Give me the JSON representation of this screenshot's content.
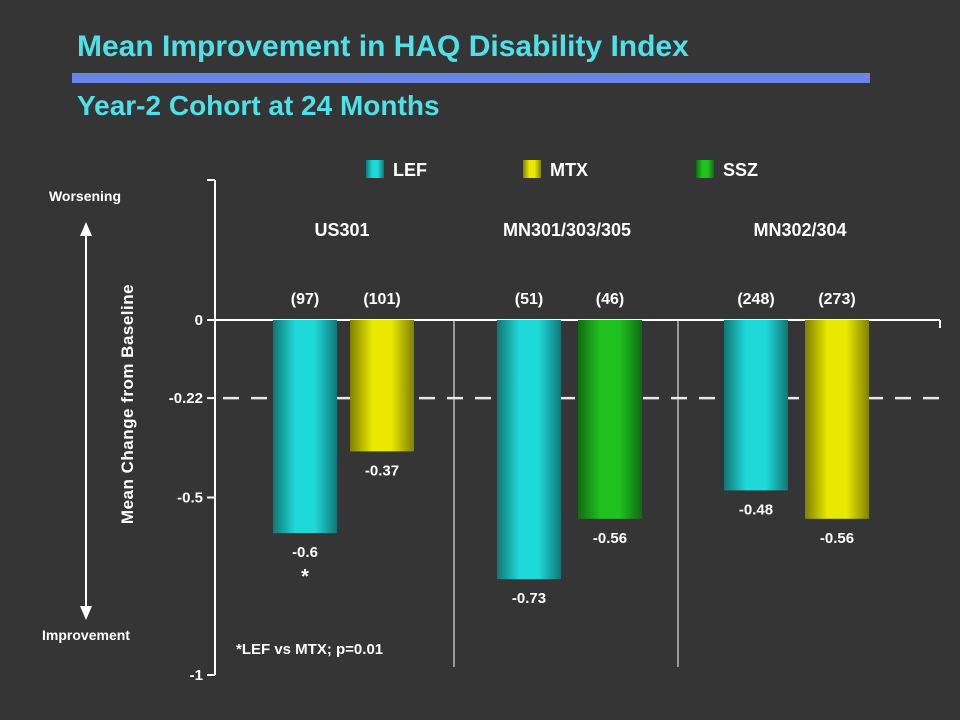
{
  "header": {
    "title": "Mean Improvement in HAQ Disability Index",
    "subtitle": "Year-2 Cohort at 24 Months"
  },
  "colors": {
    "background": "#353535",
    "title": "#4fe0e8",
    "rule": "#6a85e6",
    "LEF": "#1fd9d9",
    "MTX": "#e8e800",
    "SSZ": "#1fc21f"
  },
  "chart_data": {
    "type": "bar",
    "title": "Mean Improvement in HAQ Disability Index",
    "subtitle": "Year-2 Cohort at 24 Months",
    "ylabel": "Mean Change from Baseline",
    "ylim": [
      -1,
      0.4
    ],
    "yticks": [
      0,
      -0.22,
      -0.5,
      -1
    ],
    "ytick_labels": [
      "0",
      "-0.22",
      "-0.5",
      "-1"
    ],
    "reference_line": -0.22,
    "legend": [
      "LEF",
      "MTX",
      "SSZ"
    ],
    "legend_position": "top",
    "direction_labels": {
      "top": "Worsening",
      "bottom": "Improvement"
    },
    "groups": [
      {
        "name": "US301",
        "bars": [
          {
            "drug": "LEF",
            "n": "(97)",
            "value": -0.6,
            "label": "-0.6",
            "marker": "*"
          },
          {
            "drug": "MTX",
            "n": "(101)",
            "value": -0.37,
            "label": "-0.37"
          }
        ]
      },
      {
        "name": "MN301/303/305",
        "bars": [
          {
            "drug": "LEF",
            "n": "(51)",
            "value": -0.73,
            "label": "-0.73"
          },
          {
            "drug": "SSZ",
            "n": "(46)",
            "value": -0.56,
            "label": "-0.56"
          }
        ]
      },
      {
        "name": "MN302/304",
        "bars": [
          {
            "drug": "LEF",
            "n": "(248)",
            "value": -0.48,
            "label": "-0.48"
          },
          {
            "drug": "MTX",
            "n": "(273)",
            "value": -0.56,
            "label": "-0.56"
          }
        ]
      }
    ],
    "footnote": "*LEF vs MTX; p=0.01"
  }
}
